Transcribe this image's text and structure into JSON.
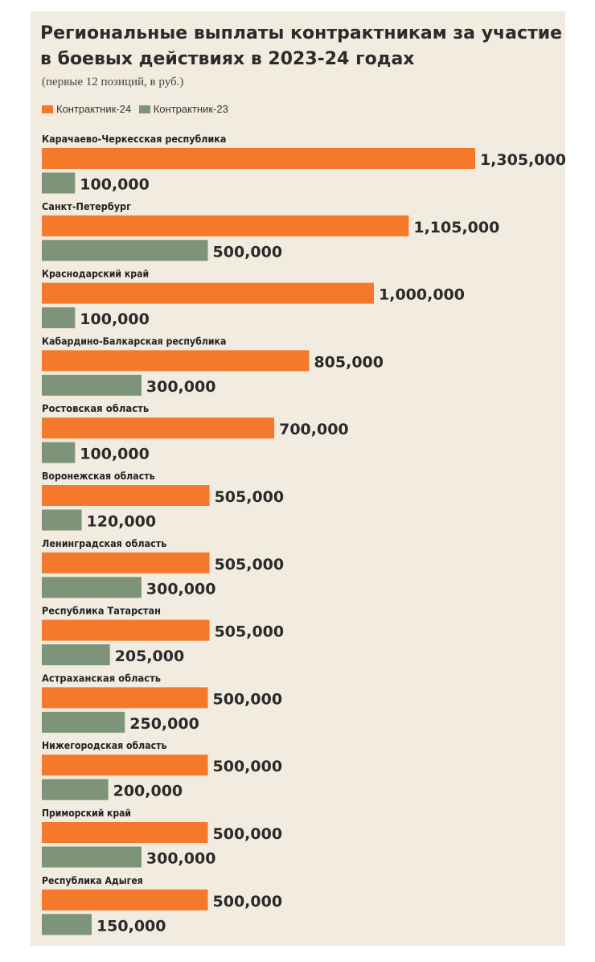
{
  "chart_data": {
    "type": "bar",
    "orientation": "horizontal",
    "title": "Региональные выплаты контрактникам за участие в боевых действиях в 2023-24 годах",
    "subtitle": "(первые 12 позиций, в руб.)",
    "xlabel": "",
    "ylabel": "",
    "legend_position": "top-left",
    "categories": [
      "Карачаево-Черкесская республика",
      "Санкт-Петербург",
      "Краснодарский край",
      "Кабардино-Балкарская республика",
      "Ростовская область",
      "Воронежская область",
      "Ленинградская область",
      "Республика Татарстан",
      "Астраханская область",
      "Нижегородская область",
      "Приморский край",
      "Республика Адыгея"
    ],
    "series": [
      {
        "name": "Контрактник-24",
        "color": "#f5792a",
        "values": [
          1305000,
          1105000,
          1000000,
          805000,
          700000,
          505000,
          505000,
          505000,
          500000,
          500000,
          500000,
          500000
        ],
        "labels": [
          "1,305,000",
          "1,105,000",
          "1,000,000",
          "805,000",
          "700,000",
          "505,000",
          "505,000",
          "505,000",
          "500,000",
          "500,000",
          "500,000",
          "500,000"
        ]
      },
      {
        "name": "Контрактник-23",
        "color": "#7d9478",
        "values": [
          100000,
          500000,
          100000,
          300000,
          100000,
          120000,
          300000,
          205000,
          250000,
          200000,
          300000,
          150000
        ],
        "labels": [
          "100,000",
          "500,000",
          "100,000",
          "300,000",
          "100,000",
          "120,000",
          "300,000",
          "205,000",
          "250,000",
          "200,000",
          "300,000",
          "150,000"
        ]
      }
    ]
  }
}
